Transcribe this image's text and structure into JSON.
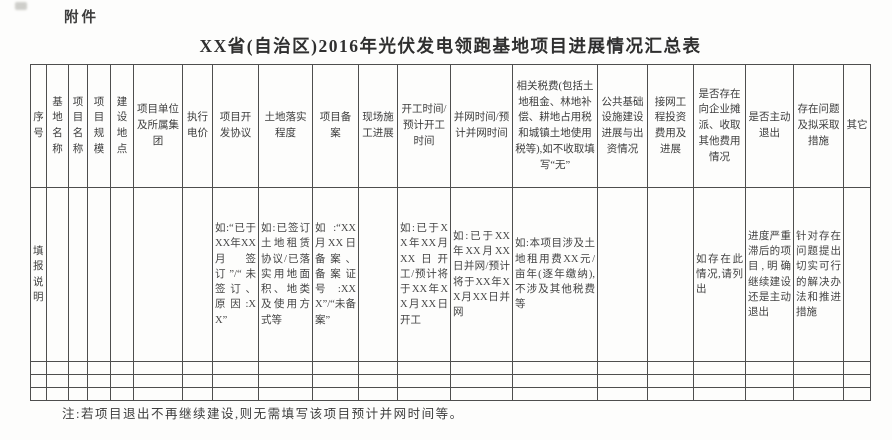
{
  "page": {
    "attachment_label": "附件",
    "title": "XX省(自治区)2016年光伏发电领跑基地项目进展情况汇总表",
    "note": "注:若项目退出不再继续建设,则无需填写该项目预计并网时间等。"
  },
  "table": {
    "headers": [
      "序号",
      "基地名称",
      "项目名称",
      "项目规模",
      "建设地点",
      "项目单位及所属集团",
      "执行电价",
      "项目开发协议",
      "土地落实程度",
      "项目备案",
      "现场施工进展",
      "开工时间/预计开工时间",
      "并网时间/预计并网时间",
      "相关税费(包括土地租金、林地补偿、耕地占用税和城镇土地使用税等),如不收取填写“无”",
      "公共基础设施建设进展与出资情况",
      "接网工程投资费用及进展",
      "是否存在向企业摊派、收取其他费用情况",
      "是否主动退出",
      "存在问题及拟采取措施",
      "其它"
    ],
    "instruction_row": [
      "填报说明",
      "",
      "",
      "",
      "",
      "",
      "",
      "如:“已于XX年XX月签订”/“未签订、原因:XX”",
      "如:已签订土地租赁协议/已落实用地面积、地类及使用方式等",
      "如:“XX月XX日备案、备案证号:XXX”/“未备案”",
      "",
      "如:已于XX年XX月XX日开工/预计将于XX年XX月XX日开工",
      "如:已于XX年XX月XX日并网/预计将于XX年XX月XX日并网",
      "如:本项目涉及土地租用费XX元/亩年(逐年缴纳),不涉及其他税费等",
      "",
      "",
      "如存在此情况,请列出",
      "进度严重滞后的项目,明确继续建设还是主动退出",
      "针对存在问题提出切实可行的解决办法和推进措施",
      ""
    ],
    "empty_row_count": 3
  }
}
